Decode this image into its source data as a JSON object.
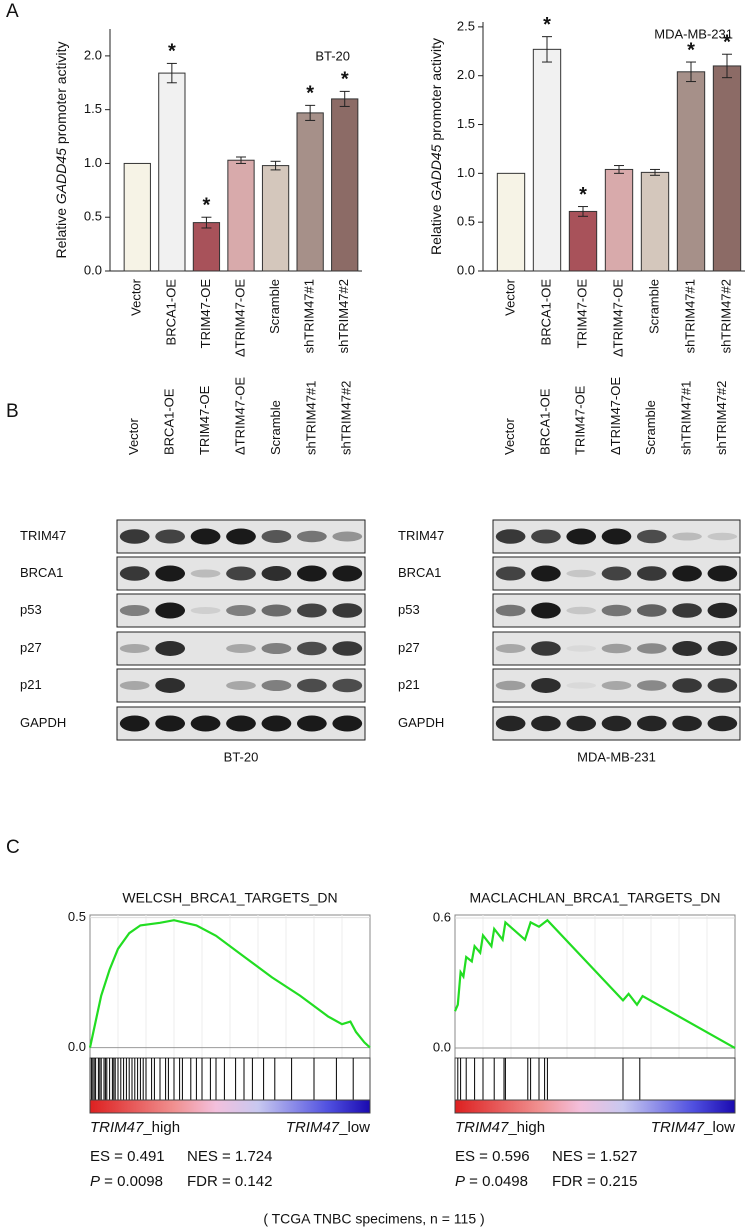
{
  "panel_labels": [
    "A",
    "B",
    "C"
  ],
  "chart_data": [
    {
      "type": "bar",
      "annotation": "BT-20",
      "ylabel_parts": [
        {
          "text": "Relative "
        },
        {
          "text": "GADD45",
          "italic": true
        },
        {
          "text": " promoter activity"
        }
      ],
      "categories": [
        "Vector",
        "BRCA1-OE",
        "TRIM47-OE",
        "ΔTRIM47-OE",
        "Scramble",
        "shTRIM47#1",
        "shTRIM47#2"
      ],
      "values": [
        1.0,
        1.84,
        0.45,
        1.03,
        0.98,
        1.47,
        1.6
      ],
      "errors": [
        0,
        0.09,
        0.05,
        0.03,
        0.04,
        0.07,
        0.07
      ],
      "markers": [
        null,
        "*",
        "*",
        null,
        null,
        "*",
        "*"
      ],
      "colors": [
        "#f6f3e6",
        "#f1f1f1",
        "#a8525a",
        "#d8aaab",
        "#d4c7bc",
        "#a69089",
        "#8c6b66"
      ],
      "ylim": [
        0,
        2.25
      ],
      "yticks": [
        {
          "value": 0,
          "label": "0.0"
        },
        0.5,
        {
          "value": 1,
          "label": "1.0"
        },
        1.5,
        {
          "value": 2,
          "label": "2.0"
        }
      ]
    },
    {
      "type": "bar",
      "annotation": "MDA-MB-231",
      "ylabel_parts": [
        {
          "text": "Relative "
        },
        {
          "text": "GADD45",
          "italic": true
        },
        {
          "text": " promoter activity"
        }
      ],
      "categories": [
        "Vector",
        "BRCA1-OE",
        "TRIM47-OE",
        "ΔTRIM47-OE",
        "Scramble",
        "shTRIM47#1",
        "shTRIM47#2"
      ],
      "values": [
        1.0,
        2.27,
        0.61,
        1.04,
        1.01,
        2.04,
        2.1
      ],
      "errors": [
        0,
        0.13,
        0.05,
        0.04,
        0.03,
        0.1,
        0.12
      ],
      "markers": [
        null,
        "*",
        "*",
        null,
        null,
        "*",
        "*"
      ],
      "colors": [
        "#f6f3e6",
        "#f1f1f1",
        "#a8525a",
        "#d8aaab",
        "#d4c7bc",
        "#a69089",
        "#8c6b66"
      ],
      "ylim": [
        0,
        2.55
      ],
      "yticks": [
        {
          "value": 0,
          "label": "0.0"
        },
        0.5,
        {
          "value": 1,
          "label": "1.0"
        },
        1.5,
        {
          "value": 2,
          "label": "2.0"
        },
        2.5
      ]
    },
    {
      "type": "line",
      "title": "WELCSH_BRCA1_TARGETS_DN",
      "color": "#22dd22",
      "x": [
        0,
        2,
        4,
        7,
        10,
        14,
        18,
        25,
        30,
        38,
        45,
        55,
        65,
        75,
        80,
        85,
        90,
        93,
        95,
        98,
        100
      ],
      "values": [
        0.0,
        0.1,
        0.2,
        0.3,
        0.38,
        0.44,
        0.47,
        0.48,
        0.49,
        0.47,
        0.43,
        0.35,
        0.27,
        0.2,
        0.16,
        0.12,
        0.09,
        0.1,
        0.06,
        0.02,
        0.0
      ],
      "hits": [
        0.5,
        1,
        1.5,
        2,
        3,
        3.5,
        4,
        5,
        5.5,
        6,
        7,
        8,
        8.5,
        9,
        10,
        11,
        12,
        13,
        14,
        15,
        16,
        17,
        18,
        19,
        20,
        22,
        23,
        25,
        27,
        28,
        30,
        32,
        33,
        36,
        38,
        40,
        43,
        45,
        48,
        52,
        55,
        58,
        62,
        66,
        72,
        80,
        88,
        94
      ],
      "xlim": [
        0,
        100
      ],
      "ylim": [
        -0.04,
        0.51
      ],
      "yticks": [
        {
          "value": 0,
          "label": "0.0"
        },
        0.5
      ],
      "high_gene": "TRIM47",
      "high_suffix": "_high",
      "low_gene": "TRIM47",
      "low_suffix": "_low",
      "es": "ES = 0.491",
      "nes": "NES = 1.724",
      "p_symbol": "P",
      "p_value": " = 0.0098",
      "fdr": "FDR = 0.142"
    },
    {
      "type": "line",
      "title": "MACLACHLAN_BRCA1_TARGETS_DN",
      "color": "#22dd22",
      "x": [
        0,
        1,
        2,
        3,
        4,
        6,
        7,
        9,
        10,
        13,
        14,
        17,
        18,
        25,
        27,
        30,
        33,
        60,
        62,
        65,
        67,
        100
      ],
      "values": [
        0.17,
        0.2,
        0.35,
        0.33,
        0.42,
        0.4,
        0.47,
        0.44,
        0.52,
        0.47,
        0.55,
        0.5,
        0.58,
        0.5,
        0.58,
        0.56,
        0.59,
        0.22,
        0.25,
        0.2,
        0.24,
        0.0
      ],
      "hits": [
        1,
        2,
        4,
        7,
        10,
        14,
        17.5,
        18,
        26,
        27,
        30,
        32,
        33,
        60,
        66
      ],
      "xlim": [
        0,
        100
      ],
      "ylim": [
        -0.046,
        0.614
      ],
      "yticks": [
        {
          "value": 0,
          "label": "0.0"
        },
        0.6
      ],
      "high_gene": "TRIM47",
      "high_suffix": "_high",
      "low_gene": "TRIM47",
      "low_suffix": "_low",
      "es": "ES = 0.596",
      "nes": "NES = 1.527",
      "p_symbol": "P",
      "p_value": " = 0.0498",
      "fdr": "FDR = 0.215"
    }
  ],
  "blots": {
    "columns": [
      "Vector",
      "BRCA1-OE",
      "TRIM47-OE",
      "ΔTRIM47-OE",
      "Scramble",
      "shTRIM47#1",
      "shTRIM47#2"
    ],
    "rows": [
      "TRIM47",
      "BRCA1",
      "p53",
      "p27",
      "p21",
      "GAPDH"
    ],
    "cell_lines": [
      "BT-20",
      "MDA-MB-231"
    ]
  },
  "footnote": "( TCGA TNBC specimens, n = 115 )"
}
